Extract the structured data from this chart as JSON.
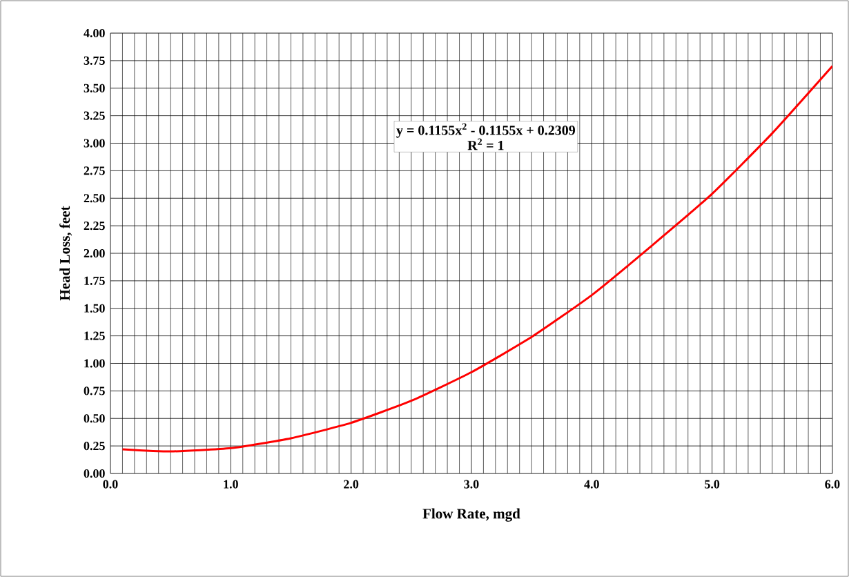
{
  "chart_data": {
    "type": "line",
    "xlabel": "Flow Rate, mgd",
    "ylabel": "Head Loss, feet",
    "annotations": [
      "y = 0.1155x$^{2}$ - 0.1155x + 0.2309",
      "R$^{2}$ = 1"
    ],
    "x": [
      0.1,
      0.5,
      1.0,
      1.5,
      2.0,
      2.5,
      3.0,
      3.5,
      4.0,
      4.5,
      5.0,
      5.5,
      6.0
    ],
    "series": [
      {
        "color": "#ff0000",
        "values": [
          0.22,
          0.2,
          0.23,
          0.32,
          0.46,
          0.66,
          0.92,
          1.24,
          1.62,
          2.07,
          2.54,
          3.09,
          3.7
        ]
      }
    ],
    "xlim": [
      0,
      6
    ],
    "ylim": [
      0,
      4
    ],
    "xticks": [
      {
        "value": 0,
        "label": "0.0"
      },
      {
        "value": 1,
        "label": "1.0"
      },
      {
        "value": 2,
        "label": "2.0"
      },
      {
        "value": 3,
        "label": "3.0"
      },
      {
        "value": 4,
        "label": "4.0"
      },
      {
        "value": 5,
        "label": "5.0"
      },
      {
        "value": 6,
        "label": "6.0"
      }
    ],
    "yticks": [
      {
        "value": 0,
        "label": "0.00"
      },
      {
        "value": 0.25,
        "label": "0.25"
      },
      {
        "value": 0.5,
        "label": "0.50"
      },
      {
        "value": 0.75,
        "label": "0.75"
      },
      {
        "value": 1,
        "label": "1.00"
      },
      {
        "value": 1.25,
        "label": "1.25"
      },
      {
        "value": 1.5,
        "label": "1.50"
      },
      {
        "value": 1.75,
        "label": "1.75"
      },
      {
        "value": 2,
        "label": "2.00"
      },
      {
        "value": 2.25,
        "label": "2.25"
      },
      {
        "value": 2.5,
        "label": "2.50"
      },
      {
        "value": 2.75,
        "label": "2.75"
      },
      {
        "value": 3,
        "label": "3.00"
      },
      {
        "value": 3.25,
        "label": "3.25"
      },
      {
        "value": 3.5,
        "label": "3.50"
      },
      {
        "value": 3.75,
        "label": "3.75"
      },
      {
        "value": 4,
        "label": "4.00"
      }
    ],
    "grid": true,
    "marker": "none",
    "line_style": "solid"
  }
}
